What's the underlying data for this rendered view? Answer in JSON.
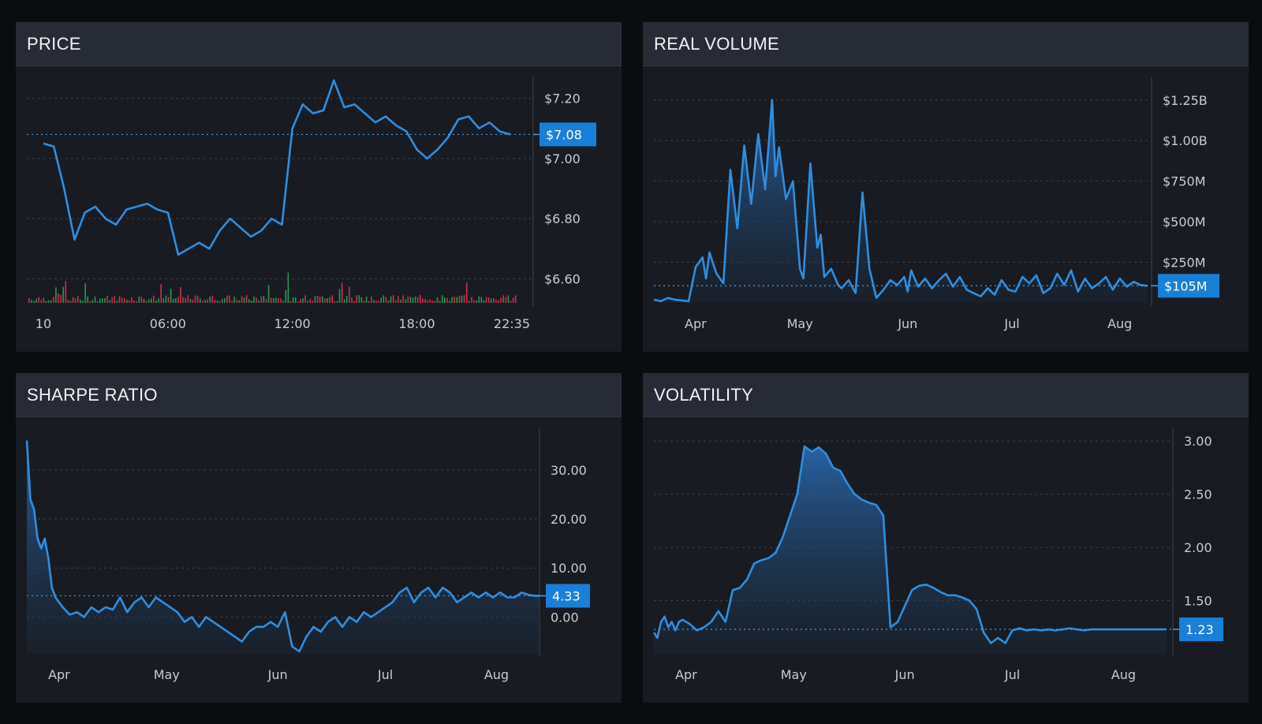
{
  "colors": {
    "line": "#2f8ee0",
    "badge": "#1a7fd6",
    "grid": "#3a3f4b",
    "vol_up": "#26a65b",
    "vol_down": "#e0344b"
  },
  "panels": [
    {
      "title": "PRICE"
    },
    {
      "title": "REAL VOLUME"
    },
    {
      "title": "SHARPE RATIO"
    },
    {
      "title": "VOLATILITY"
    }
  ],
  "chart_data": [
    {
      "type": "line",
      "title": "PRICE",
      "x_ticks": [
        "10",
        "06:00",
        "12:00",
        "18:00",
        "22:35"
      ],
      "x_tick_pos": [
        0,
        6,
        12,
        18,
        22.58
      ],
      "x_range": [
        -0.8,
        23
      ],
      "y_ticks": [
        "$7.20",
        "$7.00",
        "$6.80",
        "$6.60"
      ],
      "y_tick_values": [
        7.2,
        7.0,
        6.8,
        6.6
      ],
      "ylim": [
        6.52,
        7.27
      ],
      "current": {
        "value": 7.08,
        "label": "$7.08"
      },
      "hours": [
        0.0,
        0.5,
        1.0,
        1.5,
        2.0,
        2.5,
        3.0,
        3.5,
        4.0,
        4.5,
        5.0,
        5.5,
        6.0,
        6.5,
        7.0,
        7.5,
        8.0,
        8.5,
        9.0,
        9.5,
        10.0,
        10.5,
        11.0,
        11.5,
        12.0,
        12.5,
        13.0,
        13.5,
        14.0,
        14.5,
        15.0,
        15.5,
        16.0,
        16.5,
        17.0,
        17.5,
        18.0,
        18.5,
        19.0,
        19.5,
        20.0,
        20.5,
        21.0,
        21.5,
        22.0,
        22.5
      ],
      "price": [
        7.05,
        7.04,
        6.9,
        6.73,
        6.82,
        6.84,
        6.8,
        6.78,
        6.83,
        6.84,
        6.85,
        6.83,
        6.82,
        6.68,
        6.7,
        6.72,
        6.7,
        6.76,
        6.8,
        6.77,
        6.74,
        6.76,
        6.8,
        6.78,
        7.1,
        7.18,
        7.15,
        7.16,
        7.26,
        7.17,
        7.18,
        7.15,
        7.12,
        7.14,
        7.11,
        7.09,
        7.03,
        7.0,
        7.03,
        7.07,
        7.13,
        7.14,
        7.1,
        7.12,
        7.09,
        7.08
      ],
      "volume_note": "volume bars along bottom, green up / red down"
    },
    {
      "type": "area",
      "title": "REAL VOLUME",
      "x_ticks": [
        "Apr",
        "May",
        "Jun",
        "Jul",
        "Aug"
      ],
      "x_tick_pos": [
        24,
        54,
        85,
        115,
        146
      ],
      "x_range": [
        12,
        154
      ],
      "y_ticks": [
        "$1.25B",
        "$1.00B",
        "$750M",
        "$500M",
        "$250M"
      ],
      "y_tick_values": [
        1250,
        1000,
        750,
        500,
        250
      ],
      "ylim": [
        0,
        1390
      ],
      "current": {
        "value": 105,
        "label": "$105M"
      },
      "days": [
        12,
        14,
        16,
        18,
        20,
        22,
        24,
        26,
        27,
        28,
        30,
        32,
        34,
        36,
        38,
        40,
        42,
        44,
        46,
        47,
        48,
        50,
        52,
        54,
        55,
        57,
        59,
        60,
        61,
        63,
        65,
        66,
        68,
        70,
        72,
        74,
        76,
        78,
        80,
        82,
        84,
        85,
        86,
        88,
        90,
        92,
        94,
        96,
        98,
        100,
        102,
        104,
        106,
        108,
        110,
        112,
        114,
        116,
        118,
        120,
        122,
        124,
        126,
        128,
        130,
        132,
        134,
        136,
        138,
        140,
        142,
        144,
        146,
        148,
        150,
        152,
        154
      ],
      "values": [
        20,
        10,
        30,
        20,
        15,
        10,
        220,
        280,
        150,
        310,
        180,
        120,
        820,
        460,
        970,
        610,
        1040,
        700,
        1250,
        780,
        960,
        640,
        750,
        210,
        150,
        860,
        340,
        420,
        160,
        210,
        110,
        90,
        140,
        60,
        680,
        210,
        30,
        80,
        140,
        110,
        160,
        70,
        200,
        100,
        150,
        90,
        140,
        180,
        100,
        160,
        80,
        60,
        40,
        90,
        50,
        140,
        80,
        70,
        160,
        120,
        170,
        60,
        90,
        180,
        110,
        200,
        70,
        150,
        90,
        120,
        160,
        80,
        150,
        100,
        130,
        110,
        105
      ]
    },
    {
      "type": "area",
      "title": "SHARPE RATIO",
      "x_ticks": [
        "Apr",
        "May",
        "Jun",
        "Jul",
        "Aug"
      ],
      "x_tick_pos": [
        24,
        54,
        85,
        115,
        146
      ],
      "x_range": [
        15,
        158
      ],
      "y_ticks": [
        "30.00",
        "20.00",
        "10.00",
        "0.00"
      ],
      "y_tick_values": [
        30,
        20,
        10,
        0
      ],
      "ylim": [
        -7.5,
        38.5
      ],
      "current": {
        "value": 4.33,
        "label": "4.33"
      },
      "days": [
        15,
        16,
        17,
        18,
        19,
        20,
        21,
        22,
        23,
        25,
        27,
        29,
        31,
        33,
        35,
        37,
        39,
        41,
        43,
        45,
        47,
        49,
        51,
        53,
        55,
        57,
        59,
        61,
        63,
        65,
        67,
        69,
        71,
        73,
        75,
        77,
        79,
        81,
        83,
        85,
        87,
        89,
        91,
        93,
        95,
        97,
        99,
        101,
        103,
        105,
        107,
        109,
        111,
        113,
        115,
        117,
        119,
        121,
        123,
        125,
        127,
        129,
        131,
        133,
        135,
        137,
        139,
        141,
        143,
        145,
        147,
        149,
        151,
        153,
        155,
        157,
        158
      ],
      "values": [
        36,
        24,
        22,
        16,
        14,
        16,
        12,
        6,
        4,
        2,
        0.5,
        1,
        0,
        2,
        1,
        2,
        1.5,
        4,
        1,
        3,
        4,
        2,
        4,
        3,
        2,
        1,
        -1,
        0,
        -2,
        0,
        -1,
        -2,
        -3,
        -4,
        -5,
        -3,
        -2,
        -2,
        -1,
        -2,
        1,
        -6,
        -7,
        -4,
        -2,
        -3,
        -1,
        0,
        -2,
        0,
        -1,
        1,
        0,
        1,
        2,
        3,
        5,
        6,
        3,
        5,
        6,
        4,
        6,
        5,
        3,
        4,
        5,
        4,
        5,
        4,
        5,
        4,
        4,
        5,
        4.5,
        4.3,
        4.33
      ]
    },
    {
      "type": "area",
      "title": "VOLATILITY",
      "x_ticks": [
        "Apr",
        "May",
        "Jun",
        "Jul",
        "Aug"
      ],
      "x_tick_pos": [
        24,
        54,
        85,
        115,
        146
      ],
      "x_range": [
        15,
        158
      ],
      "y_ticks": [
        "3.00",
        "2.50",
        "2.00",
        "1.50"
      ],
      "y_tick_values": [
        3.0,
        2.5,
        2.0,
        1.5
      ],
      "ylim": [
        1.0,
        3.12
      ],
      "current": {
        "value": 1.23,
        "label": "1.23"
      },
      "days": [
        15,
        16,
        17,
        18,
        19,
        20,
        21,
        22,
        23,
        25,
        27,
        29,
        31,
        33,
        35,
        37,
        39,
        41,
        43,
        45,
        47,
        49,
        51,
        53,
        55,
        57,
        59,
        61,
        63,
        65,
        67,
        69,
        71,
        73,
        75,
        77,
        79,
        81,
        83,
        85,
        87,
        89,
        91,
        93,
        95,
        97,
        99,
        101,
        103,
        105,
        107,
        109,
        111,
        113,
        115,
        117,
        119,
        121,
        123,
        125,
        127,
        129,
        131,
        133,
        135,
        137,
        139,
        141,
        143,
        145,
        147,
        149,
        151,
        153,
        155,
        157,
        158
      ],
      "values": [
        1.2,
        1.15,
        1.3,
        1.35,
        1.25,
        1.3,
        1.22,
        1.3,
        1.32,
        1.28,
        1.22,
        1.25,
        1.3,
        1.4,
        1.3,
        1.6,
        1.62,
        1.7,
        1.85,
        1.88,
        1.9,
        1.95,
        2.1,
        2.3,
        2.5,
        2.95,
        2.9,
        2.94,
        2.88,
        2.75,
        2.72,
        2.6,
        2.5,
        2.45,
        2.42,
        2.4,
        2.3,
        1.25,
        1.3,
        1.45,
        1.6,
        1.64,
        1.65,
        1.62,
        1.58,
        1.55,
        1.55,
        1.53,
        1.5,
        1.42,
        1.2,
        1.1,
        1.15,
        1.1,
        1.22,
        1.24,
        1.22,
        1.23,
        1.22,
        1.23,
        1.22,
        1.23,
        1.24,
        1.23,
        1.22,
        1.23,
        1.23,
        1.23,
        1.23,
        1.23,
        1.23,
        1.23,
        1.23,
        1.23,
        1.23,
        1.23,
        1.23
      ]
    }
  ]
}
